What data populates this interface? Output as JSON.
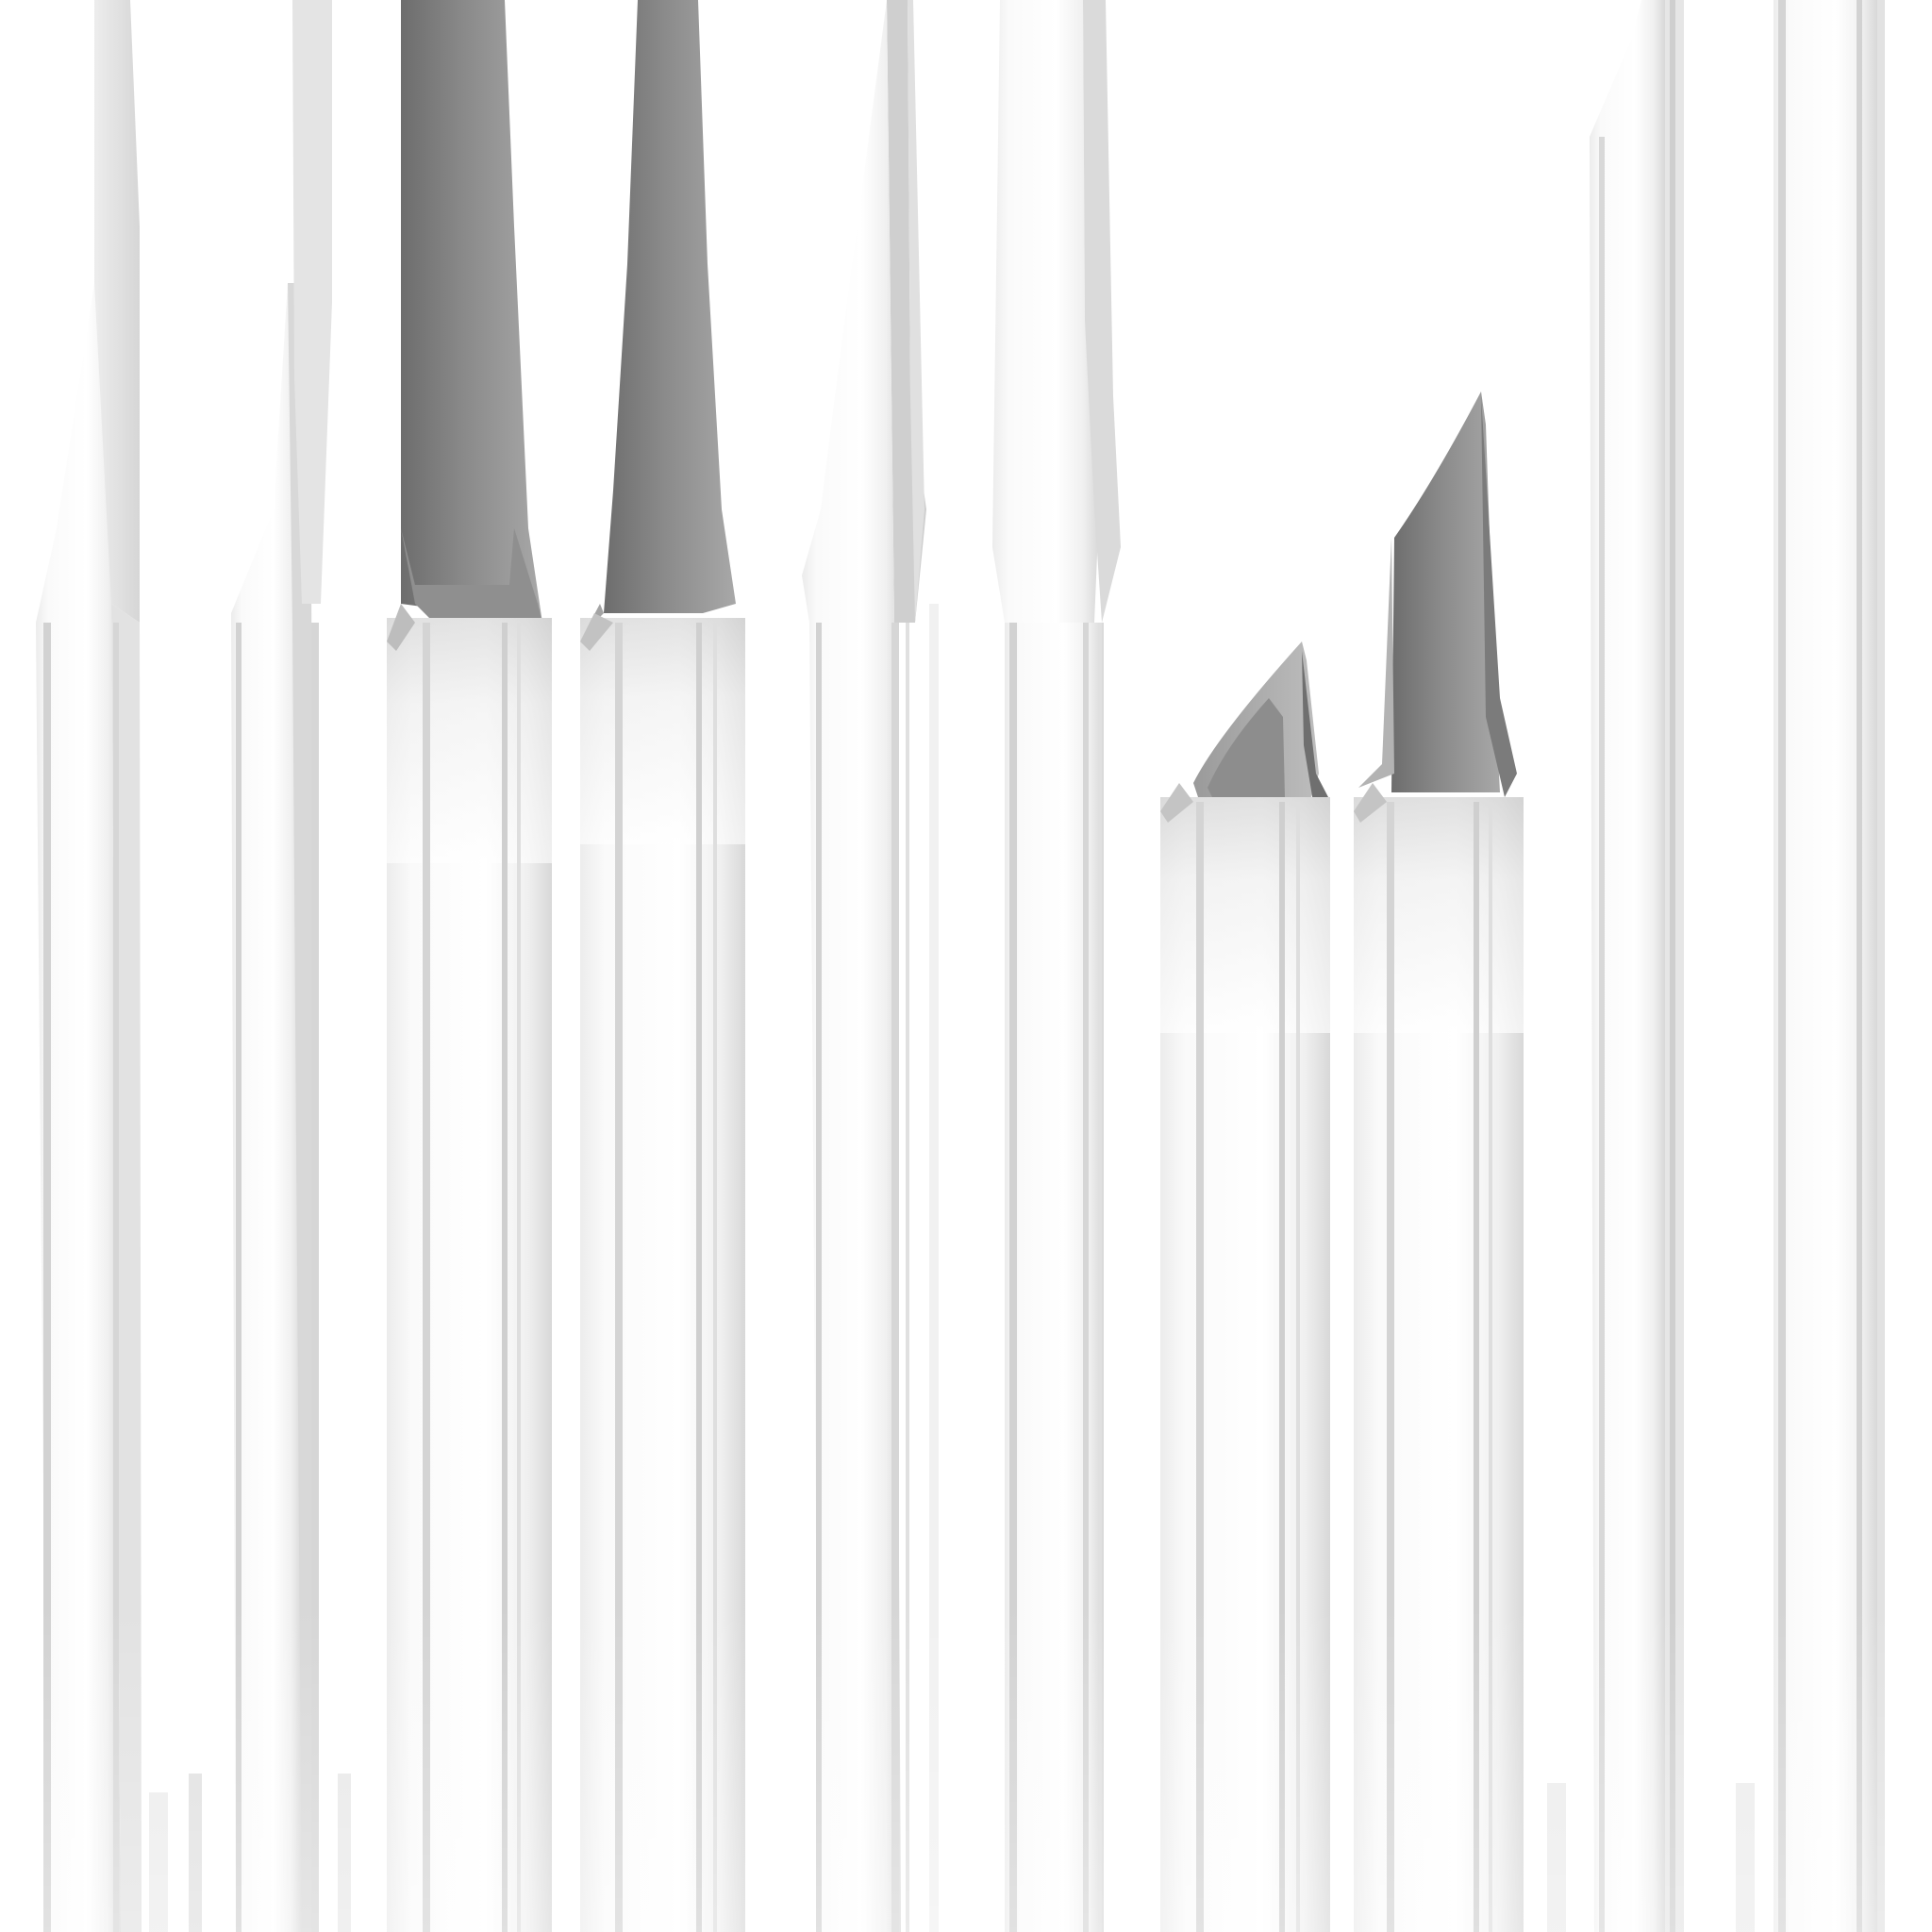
{
  "scene": {
    "description_visible_text": "",
    "background_color": "#ffffff",
    "primary_shade": "#f4f4f4",
    "mid_shade": "#cfcfcf",
    "dark_shade": "#7a7a7a",
    "darkest_shade": "#5f5f5f",
    "edge_color": "#e6e6e6"
  }
}
